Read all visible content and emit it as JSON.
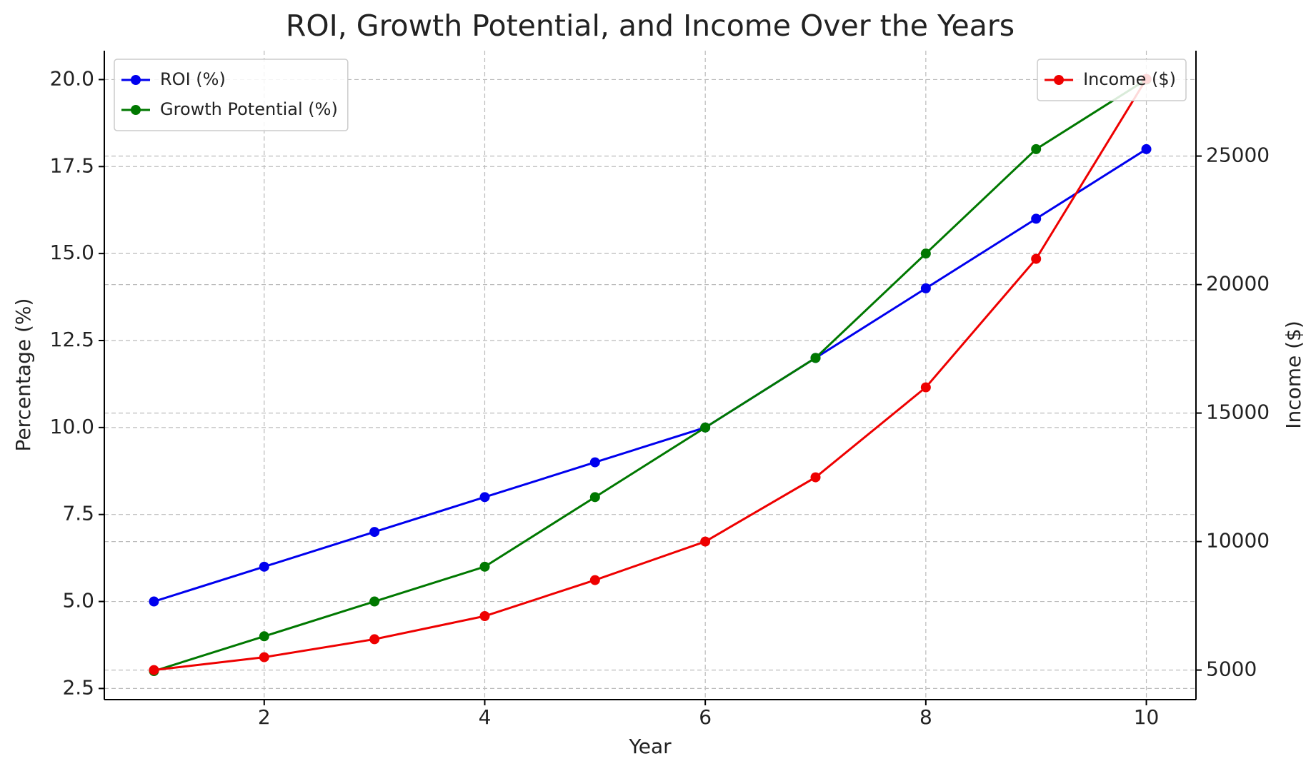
{
  "chart_data": {
    "type": "line",
    "title": "ROI, Growth Potential, and Income Over the Years",
    "x_label": "Year",
    "y_label": "Percentage (%)",
    "y2_label": "Income ($)",
    "x": [
      1,
      2,
      3,
      4,
      5,
      6,
      7,
      8,
      9,
      10
    ],
    "series": [
      {
        "name": "ROI (%)",
        "color": "#0000ee",
        "values": [
          5,
          6,
          7,
          8,
          9,
          10,
          12,
          14,
          16,
          18
        ]
      },
      {
        "name": "Growth Potential (%)",
        "color": "#007800",
        "values": [
          3,
          4,
          5,
          6,
          8,
          10,
          12,
          15,
          18,
          20
        ]
      },
      {
        "name": "Income ($)",
        "color": "#ee0000",
        "axis": "y2",
        "values": [
          5000,
          5500,
          6200,
          7100,
          8500,
          10000,
          12500,
          16000,
          21000,
          28000
        ]
      }
    ],
    "xlim": [
      0.55,
      10.45
    ],
    "xticks": [
      2,
      4,
      6,
      8,
      10
    ],
    "ylim": [
      2.18,
      20.83
    ],
    "yticks": [
      2.5,
      {
        "value": 5,
        "label": "5.0"
      },
      7.5,
      {
        "value": 10,
        "label": "10.0"
      },
      12.5,
      {
        "value": 15,
        "label": "15.0"
      },
      17.5,
      {
        "value": 20,
        "label": "20.0"
      }
    ],
    "y2lim": [
      3850,
      29100
    ],
    "y2ticks": [
      5000,
      10000,
      15000,
      20000,
      25000
    ],
    "grid": true,
    "legend": "upper left",
    "legend_y2": "upper right"
  }
}
